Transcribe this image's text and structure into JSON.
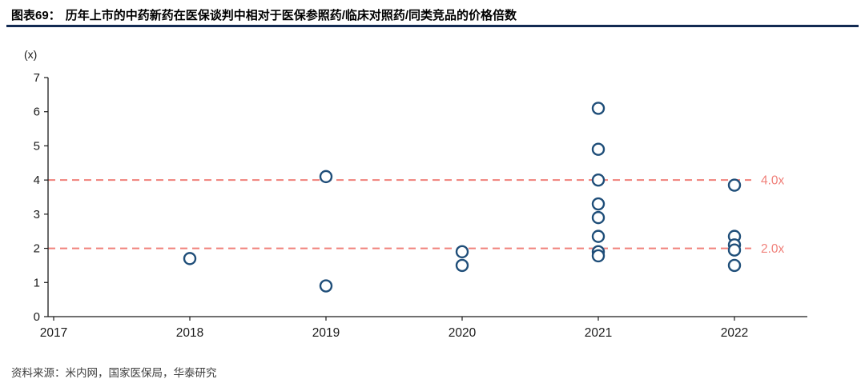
{
  "header": {
    "label": "图表69：",
    "title": "历年上市的中药新药在医保谈判中相对于医保参照药/临床对照药/同类竞品的价格倍数"
  },
  "footer": {
    "source": "资料来源：米内网，国家医保局，华泰研究"
  },
  "chart_data": {
    "type": "scatter",
    "title": "历年上市的中药新药在医保谈判中相对于医保参照药/临床对照药/同类竞品的价格倍数",
    "unit_label": "(x)",
    "xlabel": "",
    "ylabel": "",
    "x_ticks": [
      2017,
      2018,
      2019,
      2020,
      2021,
      2022
    ],
    "y_ticks": [
      0,
      1,
      2,
      3,
      4,
      5,
      6,
      7
    ],
    "ylim": [
      0,
      7
    ],
    "grid": false,
    "legend": "none",
    "points": [
      {
        "x": 2018,
        "y": 1.7
      },
      {
        "x": 2019,
        "y": 4.1
      },
      {
        "x": 2019,
        "y": 0.9
      },
      {
        "x": 2020,
        "y": 1.9
      },
      {
        "x": 2020,
        "y": 1.5
      },
      {
        "x": 2021,
        "y": 6.1
      },
      {
        "x": 2021,
        "y": 4.9
      },
      {
        "x": 2021,
        "y": 4.0
      },
      {
        "x": 2021,
        "y": 3.3
      },
      {
        "x": 2021,
        "y": 2.9
      },
      {
        "x": 2021,
        "y": 2.35
      },
      {
        "x": 2021,
        "y": 1.9
      },
      {
        "x": 2021,
        "y": 1.78
      },
      {
        "x": 2022,
        "y": 3.85
      },
      {
        "x": 2022,
        "y": 2.35
      },
      {
        "x": 2022,
        "y": 2.1
      },
      {
        "x": 2022,
        "y": 1.95
      },
      {
        "x": 2022,
        "y": 1.5
      }
    ],
    "reference_lines": [
      {
        "y": 4.0,
        "label": "4.0x"
      },
      {
        "y": 2.0,
        "label": "2.0x"
      }
    ],
    "colors": {
      "marker": "#1f4e79",
      "reference": "#f0807a",
      "axis": "#1a1a1a",
      "header_rule": "#122a52"
    }
  }
}
